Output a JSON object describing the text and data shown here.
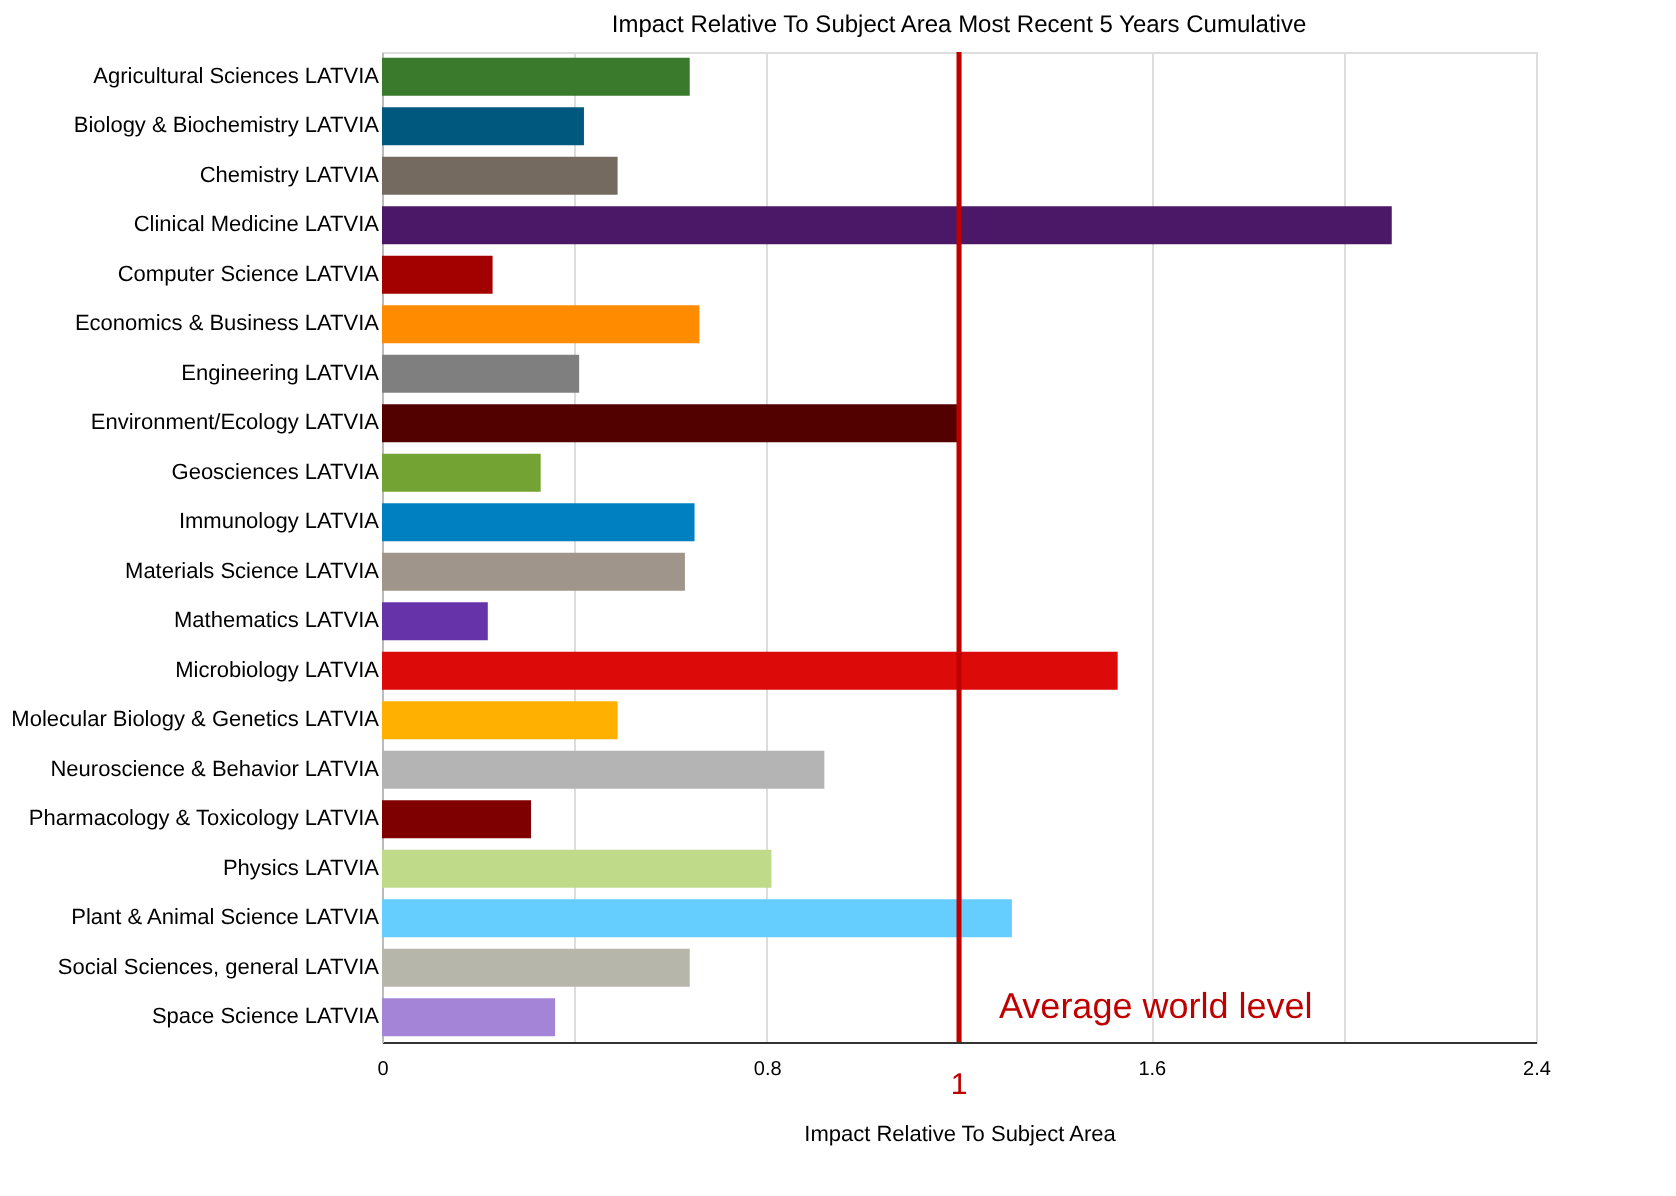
{
  "chart_data": {
    "type": "bar",
    "orientation": "horizontal",
    "title": "Impact Relative To Subject Area Most Recent 5 Years Cumulative",
    "xlabel": "Impact Relative To Subject Area",
    "categories": [
      "Agricultural Sciences  LATVIA",
      "Biology & Biochemistry  LATVIA",
      "Chemistry  LATVIA",
      "Clinical Medicine  LATVIA",
      "Computer Science  LATVIA",
      "Economics & Business  LATVIA",
      "Engineering  LATVIA",
      "Environment/Ecology  LATVIA",
      "Geosciences  LATVIA",
      "Immunology  LATVIA",
      "Materials Science  LATVIA",
      "Mathematics  LATVIA",
      "Microbiology  LATVIA",
      "Molecular Biology & Genetics LATVIA",
      "Neuroscience & Behavior  LATVIA",
      "Pharmacology & Toxicology  LATVIA",
      "Physics  LATVIA",
      "Plant & Animal Science  LATVIA",
      "Social Sciences, general  LATVIA",
      "Space Science  LATVIA"
    ],
    "values": [
      0.64,
      0.42,
      0.49,
      2.1,
      0.23,
      0.66,
      0.41,
      1.2,
      0.33,
      0.65,
      0.63,
      0.22,
      1.53,
      0.49,
      0.92,
      0.31,
      0.81,
      1.31,
      0.64,
      0.36
    ],
    "colors": [
      "#3a7a2c",
      "#00587f",
      "#756a5f",
      "#4a1866",
      "#a30000",
      "#ff8c00",
      "#7f7f7f",
      "#520000",
      "#73a332",
      "#0080c0",
      "#9f958a",
      "#6633a8",
      "#dd0a0a",
      "#ffb000",
      "#b4b4b4",
      "#7f0000",
      "#bfdb8a",
      "#66cdff",
      "#b6b6ab",
      "#a384d6"
    ],
    "xlim": [
      0,
      2.4
    ],
    "xticks": [
      0,
      {
        "value": 0.4,
        "label": null
      },
      0.8,
      {
        "value": 1.2,
        "label": null
      },
      1.6,
      {
        "value": 2.0,
        "label": null
      },
      2.4
    ],
    "grid": "x",
    "legend": false,
    "ref_lines": [
      {
        "axis": "x",
        "value": 1.2,
        "label": "1",
        "color": "#c00000"
      }
    ],
    "annotations": [
      "Average world level"
    ]
  }
}
